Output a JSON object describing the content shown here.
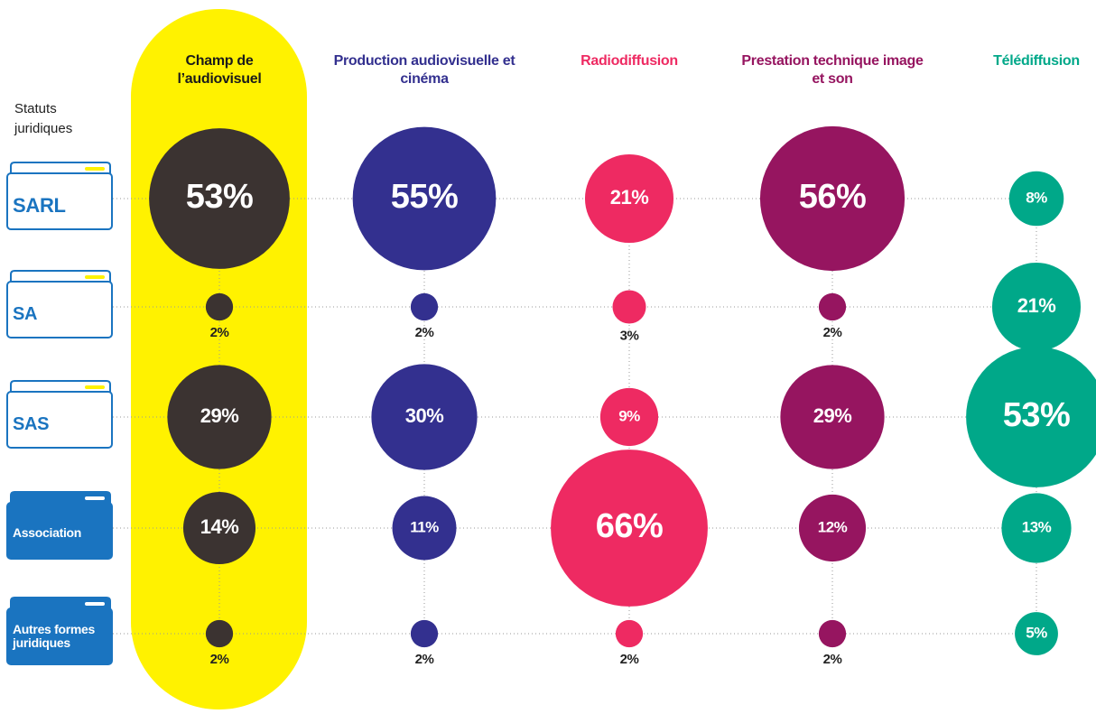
{
  "chart_data": {
    "type": "bubble-matrix",
    "y_label": "Statuts juridiques",
    "categories": [
      "SARL",
      "SA",
      "SAS",
      "Association",
      "Autres formes juridiques"
    ],
    "series": [
      {
        "name": "Champ de l’audiovisuel",
        "color": "#3b3331",
        "values": [
          53,
          2,
          29,
          14,
          2
        ],
        "value_labels": [
          "53%",
          "2%",
          "29%",
          "14%",
          "2%"
        ]
      },
      {
        "name": "Production audiovisuelle et cinéma",
        "color": "#33308f",
        "values": [
          55,
          2,
          30,
          11,
          2
        ],
        "value_labels": [
          "55%",
          "2%",
          "30%",
          "11%",
          "2%"
        ]
      },
      {
        "name": "Radiodiffusion",
        "color": "#ee2a62",
        "values": [
          21,
          3,
          9,
          66,
          2
        ],
        "value_labels": [
          "21%",
          "3%",
          "9%",
          "66%",
          "2%"
        ]
      },
      {
        "name": "Prestation technique image et son",
        "color": "#961560",
        "values": [
          56,
          2,
          29,
          12,
          2
        ],
        "value_labels": [
          "56%",
          "2%",
          "29%",
          "12%",
          "2%"
        ]
      },
      {
        "name": "Télédiffusion",
        "color": "#00a889",
        "values": [
          8,
          21,
          53,
          13,
          5
        ],
        "value_labels": [
          "8%",
          "21%",
          "53%",
          "13%",
          "5%"
        ]
      }
    ]
  }
}
